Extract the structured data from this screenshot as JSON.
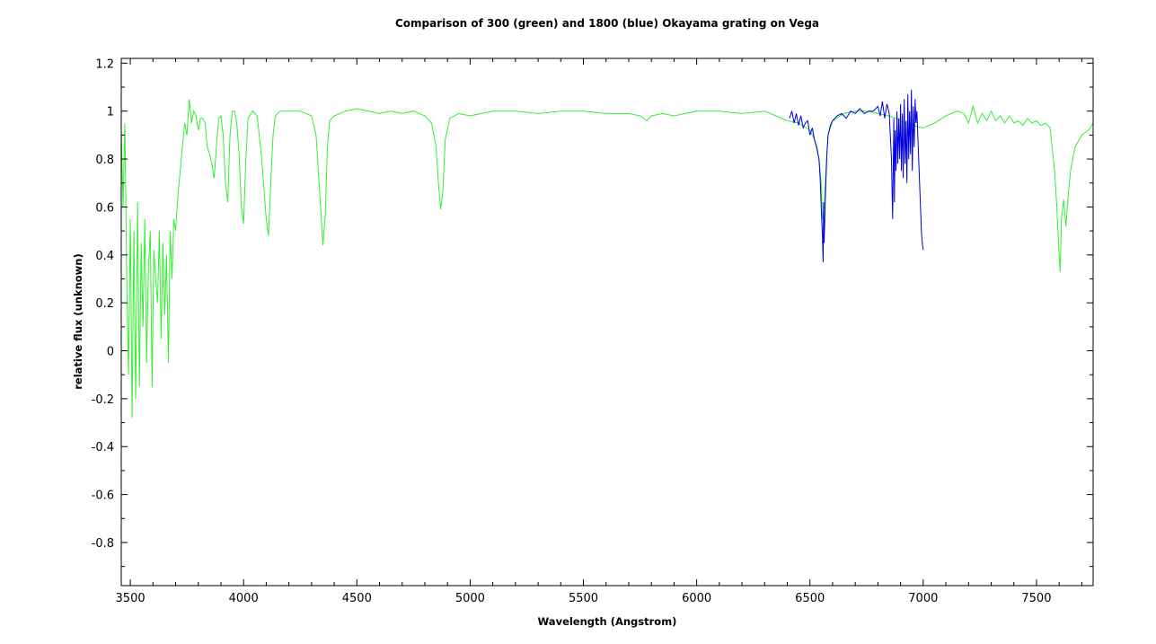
{
  "chart_data": {
    "type": "line",
    "title": "Comparison of 300 (green) and 1800 (blue) Okayama grating on Vega",
    "xlabel": "Wavelength (Angstrom)",
    "ylabel": "relative flux (unknown)",
    "xlim": [
      3460,
      7750
    ],
    "ylim": [
      -0.98,
      1.22
    ],
    "x_ticks": [
      3500,
      4000,
      4500,
      5000,
      5500,
      6000,
      6500,
      7000,
      7500
    ],
    "x_tick_labels": [
      "3500",
      "4000",
      "4500",
      "5000",
      "5500",
      "6000",
      "6500",
      "7000",
      "7500"
    ],
    "y_ticks": [
      -0.8,
      -0.6,
      -0.4,
      -0.2,
      0,
      0.2,
      0.4,
      0.6,
      0.8,
      1,
      1.2
    ],
    "y_tick_labels": [
      "-0.8",
      "-0.6",
      "-0.4",
      "-0.2",
      "0",
      "0.2",
      "0.4",
      "0.6",
      "0.8",
      "1",
      "1.2"
    ],
    "grid": false,
    "series": [
      {
        "color": "#33ee33",
        "x": [
          3460,
          3468,
          3476,
          3484,
          3492,
          3500,
          3508,
          3516,
          3524,
          3532,
          3540,
          3548,
          3556,
          3564,
          3572,
          3580,
          3588,
          3596,
          3604,
          3612,
          3620,
          3628,
          3636,
          3644,
          3652,
          3660,
          3668,
          3676,
          3684,
          3692,
          3700,
          3710,
          3720,
          3730,
          3740,
          3750,
          3760,
          3770,
          3780,
          3790,
          3800,
          3810,
          3820,
          3830,
          3840,
          3850,
          3860,
          3870,
          3880,
          3890,
          3900,
          3910,
          3920,
          3930,
          3940,
          3950,
          3960,
          3970,
          3980,
          3990,
          4000,
          4010,
          4020,
          4040,
          4060,
          4080,
          4100,
          4110,
          4120,
          4130,
          4140,
          4160,
          4200,
          4250,
          4300,
          4320,
          4340,
          4350,
          4360,
          4370,
          4380,
          4400,
          4450,
          4500,
          4550,
          4600,
          4650,
          4700,
          4750,
          4800,
          4830,
          4850,
          4860,
          4870,
          4880,
          4890,
          4910,
          4950,
          5000,
          5100,
          5200,
          5300,
          5400,
          5500,
          5600,
          5700,
          5750,
          5780,
          5800,
          5850,
          5900,
          6000,
          6100,
          6200,
          6300,
          6350,
          6400,
          6450,
          6500,
          6520,
          6540,
          6550,
          6555,
          6563,
          6570,
          6580,
          6600,
          6650,
          6700,
          6750,
          6800,
          6850,
          6880,
          6900,
          6950,
          7000,
          7050,
          7100,
          7150,
          7180,
          7200,
          7220,
          7240,
          7260,
          7280,
          7300,
          7320,
          7340,
          7360,
          7380,
          7400,
          7420,
          7440,
          7460,
          7480,
          7500,
          7520,
          7540,
          7560,
          7580,
          7590,
          7600,
          7605,
          7610,
          7620,
          7630,
          7640,
          7650,
          7670,
          7700,
          7730,
          7750
        ],
        "values": [
          0.92,
          0.6,
          0.95,
          0.3,
          -0.1,
          0.55,
          -0.28,
          0.5,
          -0.2,
          0.62,
          -0.15,
          0.45,
          0.1,
          0.55,
          -0.05,
          0.35,
          0.5,
          -0.15,
          0.42,
          0.3,
          0.2,
          0.5,
          0.05,
          0.45,
          0.15,
          0.4,
          -0.05,
          0.5,
          0.3,
          0.55,
          0.5,
          0.65,
          0.75,
          0.85,
          0.95,
          0.9,
          1.05,
          0.95,
          1.0,
          0.98,
          0.92,
          0.97,
          0.97,
          0.95,
          0.85,
          0.82,
          0.78,
          0.72,
          0.85,
          0.97,
          0.98,
          0.9,
          0.7,
          0.62,
          0.9,
          1.0,
          1.0,
          0.95,
          0.82,
          0.6,
          0.53,
          0.8,
          0.97,
          1.0,
          0.98,
          0.8,
          0.55,
          0.48,
          0.7,
          0.9,
          0.98,
          1.0,
          1.0,
          1.0,
          0.98,
          0.9,
          0.6,
          0.44,
          0.56,
          0.85,
          0.96,
          0.98,
          1.0,
          1.01,
          1.0,
          0.99,
          1.0,
          0.99,
          1.0,
          0.98,
          0.95,
          0.85,
          0.7,
          0.59,
          0.67,
          0.88,
          0.97,
          0.99,
          0.98,
          1.0,
          1.0,
          0.99,
          1.0,
          1.0,
          0.99,
          0.99,
          0.98,
          0.96,
          0.98,
          0.99,
          0.98,
          1.0,
          1.0,
          0.99,
          1.0,
          0.98,
          0.96,
          0.95,
          0.92,
          0.88,
          0.8,
          0.7,
          0.55,
          0.6,
          0.75,
          0.9,
          0.96,
          0.99,
          1.0,
          1.0,
          0.99,
          0.98,
          0.97,
          0.96,
          0.94,
          0.93,
          0.95,
          0.98,
          1.0,
          0.99,
          0.95,
          1.02,
          0.95,
          0.99,
          0.96,
          1.0,
          0.96,
          0.98,
          0.95,
          0.98,
          0.95,
          0.96,
          0.94,
          0.97,
          0.95,
          0.96,
          0.94,
          0.95,
          0.93,
          0.75,
          0.6,
          0.4,
          0.33,
          0.55,
          0.63,
          0.52,
          0.65,
          0.75,
          0.85,
          0.9,
          0.92,
          0.95
        ]
      },
      {
        "color": "#0000dd",
        "x": [
          6410,
          6420,
          6430,
          6440,
          6450,
          6460,
          6470,
          6480,
          6490,
          6500,
          6510,
          6520,
          6530,
          6540,
          6545,
          6550,
          6555,
          6558,
          6560,
          6563,
          6566,
          6570,
          6575,
          6580,
          6590,
          6600,
          6620,
          6640,
          6660,
          6680,
          6700,
          6720,
          6740,
          6760,
          6780,
          6800,
          6810,
          6820,
          6830,
          6840,
          6850,
          6860,
          6865,
          6870,
          6873,
          6876,
          6880,
          6884,
          6888,
          6892,
          6896,
          6900,
          6904,
          6908,
          6912,
          6916,
          6920,
          6924,
          6928,
          6932,
          6936,
          6940,
          6944,
          6948,
          6952,
          6956,
          6960,
          6964,
          6968,
          6972,
          6976,
          6980,
          6984,
          6988,
          6992,
          6996,
          7000
        ],
        "values": [
          0.97,
          1.0,
          0.95,
          0.99,
          0.94,
          0.98,
          0.93,
          0.95,
          0.96,
          0.9,
          0.93,
          0.88,
          0.85,
          0.8,
          0.72,
          0.6,
          0.48,
          0.37,
          0.62,
          0.45,
          0.58,
          0.7,
          0.82,
          0.9,
          0.94,
          0.96,
          0.98,
          0.99,
          0.97,
          1.0,
          0.99,
          1.01,
          0.99,
          1.0,
          1.0,
          1.02,
          0.98,
          1.04,
          0.97,
          1.03,
          0.99,
          0.8,
          0.55,
          0.97,
          0.62,
          0.92,
          0.75,
          1.0,
          0.78,
          0.97,
          0.8,
          1.03,
          0.75,
          0.99,
          0.72,
          1.05,
          0.78,
          0.96,
          0.7,
          1.07,
          0.8,
          1.0,
          0.82,
          1.09,
          0.75,
          1.02,
          0.85,
          1.05,
          0.95,
          1.0,
          0.9,
          0.8,
          0.7,
          0.6,
          0.5,
          0.45,
          0.42
        ]
      }
    ]
  }
}
